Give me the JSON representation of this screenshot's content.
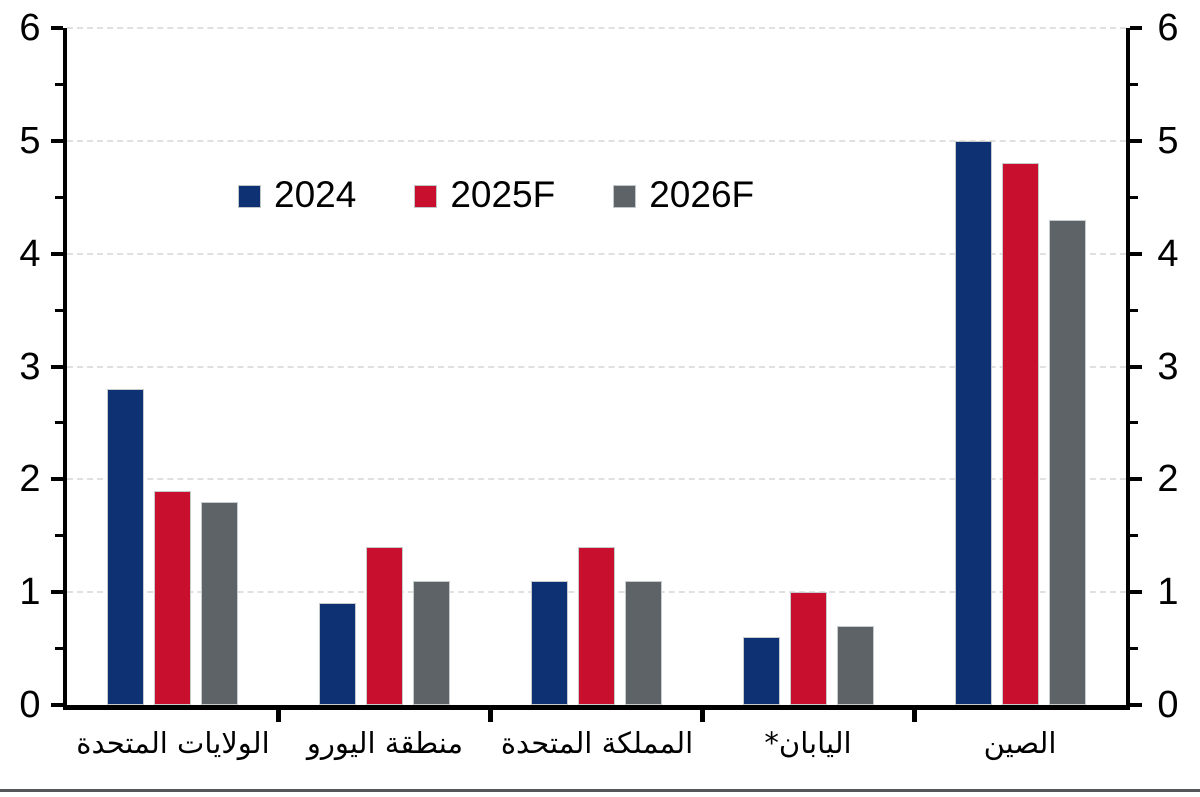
{
  "chart_data": {
    "type": "bar",
    "title": "",
    "categories": [
      "الولايات المتحدة",
      "منطقة اليورو",
      "المملكة المتحدة",
      "اليابان*",
      "الصين"
    ],
    "series": [
      {
        "name": "2024",
        "color": "#0d3173",
        "values": [
          2.8,
          0.9,
          1.1,
          0.6,
          5.0
        ]
      },
      {
        "name": "2025F",
        "color": "#c8102e",
        "values": [
          1.9,
          1.4,
          1.4,
          1.0,
          4.8
        ]
      },
      {
        "name": "2026F",
        "color": "#5d6366",
        "values": [
          1.8,
          1.1,
          1.1,
          0.7,
          4.3
        ]
      }
    ],
    "xlabel": "",
    "ylabel": "",
    "ylim": [
      0,
      6
    ],
    "ytick_labels": [
      "0",
      "1",
      "2",
      "3",
      "4",
      "5",
      "6"
    ],
    "minor_tick_step": 0.5,
    "grid": "horizontal dashed at integers",
    "dual_y_axis": true,
    "legend_position": "inside top-left",
    "legend_labels": [
      "2024",
      "2025F",
      "2026F"
    ]
  },
  "colors": {
    "background": "#ffffff",
    "axis": "#000000",
    "gridline": "#e0e0e0",
    "bar_blue": "#0d3173",
    "bar_red": "#c8102e",
    "bar_gray": "#5d6366",
    "bottom_rule": "#54565a"
  }
}
